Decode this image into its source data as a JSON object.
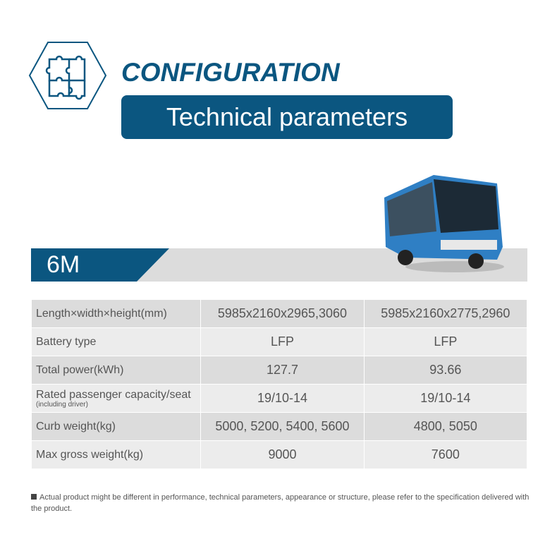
{
  "header": {
    "title": "CONFIGURATION",
    "subtitle": "Technical parameters",
    "icon": "puzzle-icon"
  },
  "model": {
    "label": "6M"
  },
  "table": {
    "rows": [
      {
        "label": "Length×width×height(mm)",
        "values": [
          "5985x2160x2965,3060",
          "5985x2160x2775,2960"
        ]
      },
      {
        "label": "Battery type",
        "values": [
          "LFP",
          "LFP"
        ]
      },
      {
        "label": "Total power(kWh)",
        "values": [
          "127.7",
          "93.66"
        ]
      },
      {
        "label": "Rated passenger capacity/seat",
        "sublabel": "(including driver)",
        "values": [
          "19/10-14",
          "19/10-14"
        ]
      },
      {
        "label": "Curb weight(kg)",
        "values": [
          "5000, 5200, 5400, 5600",
          "4800, 5050"
        ]
      },
      {
        "label": "Max gross weight(kg)",
        "values": [
          "9000",
          "7600"
        ]
      }
    ]
  },
  "note": "Actual product might be different in performance, technical parameters, appearance or structure, please refer to the specification delivered with the product.",
  "colors": {
    "brand": "#0b5680",
    "band": "#dcdcdc"
  }
}
